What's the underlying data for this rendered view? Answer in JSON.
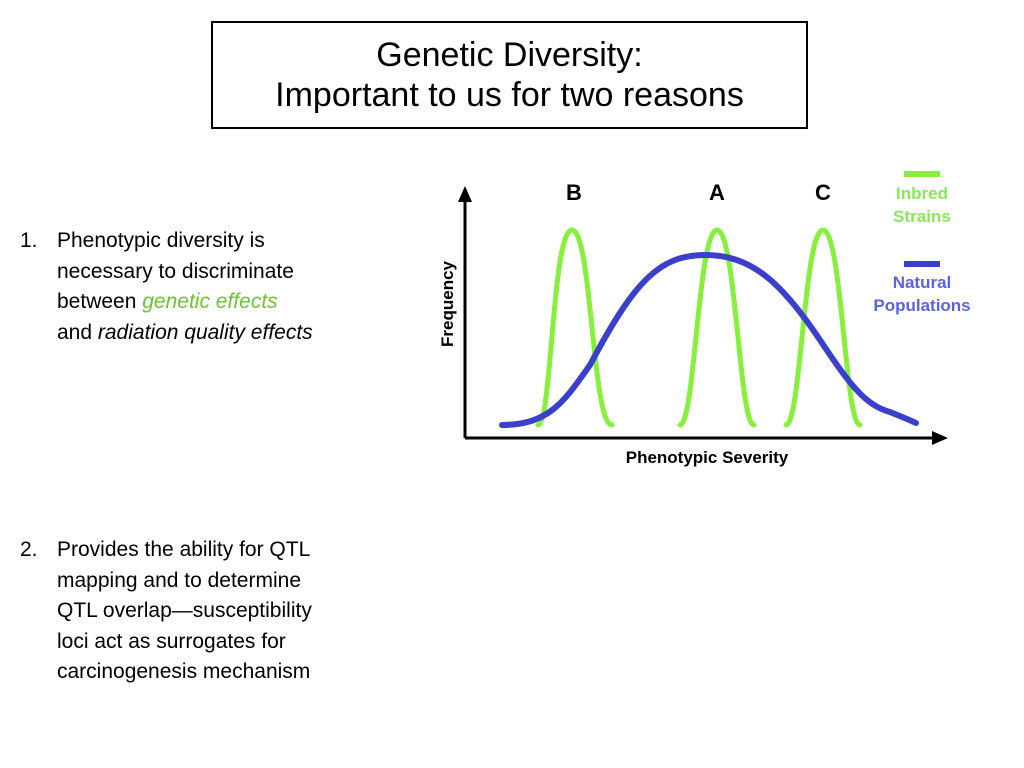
{
  "slide": {
    "title_line1": "Genetic Diversity:",
    "title_line2": "Important to us for two reasons"
  },
  "points": [
    {
      "number": "1.",
      "line1": "Phenotypic diversity is",
      "line2": "necessary to discriminate",
      "line3_prefix": "between ",
      "line3_emph": "genetic effects",
      "line4_prefix": "and ",
      "line4_emph": "radiation quality effects"
    },
    {
      "number": "2.",
      "lines": [
        "Provides the ability for QTL",
        "mapping and to determine",
        "QTL overlap—susceptibility",
        "loci act as surrogates for",
        "carcinogenesis mechanism"
      ]
    }
  ],
  "diagram": {
    "x_label": "Phenotypic Severity",
    "y_label": "Frequency",
    "peak_labels": [
      "B",
      "A",
      "C"
    ],
    "legend": [
      {
        "line1": "Inbred",
        "line2": "Strains",
        "color": "#87f03a"
      },
      {
        "line1": "Natural",
        "line2": "Populations",
        "color": "#3a3fcc"
      }
    ],
    "colors": {
      "inbred_curve": "#87f03a",
      "natural_curve": "#3a3fcc",
      "inbred_text": "#88e85a",
      "natural_text": "#5a64e0",
      "emphasis_green": "#6cc62e"
    }
  }
}
